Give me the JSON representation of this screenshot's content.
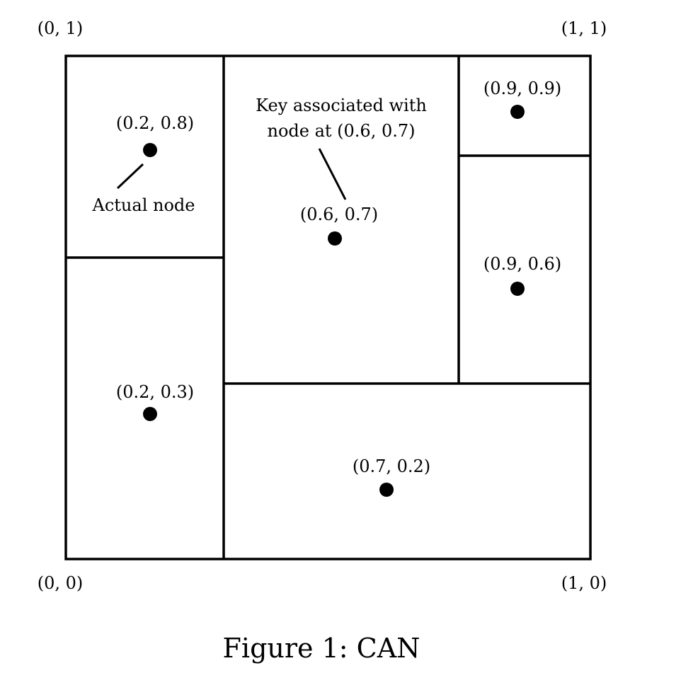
{
  "corners": {
    "top_left": "(0, 1)",
    "top_right": "(1, 1)",
    "bottom_left": "(0, 0)",
    "bottom_right": "(1, 0)"
  },
  "nodes": [
    {
      "id": "n-0-2-0-8",
      "label": "(0.2, 0.8)"
    },
    {
      "id": "n-0-6-0-7",
      "label": "(0.6, 0.7)"
    },
    {
      "id": "n-0-9-0-9",
      "label": "(0.9, 0.9)"
    },
    {
      "id": "n-0-9-0-6",
      "label": "(0.9, 0.6)"
    },
    {
      "id": "n-0-2-0-3",
      "label": "(0.2, 0.3)"
    },
    {
      "id": "n-0-7-0-2",
      "label": "(0.7, 0.2)"
    }
  ],
  "annotations": {
    "actual_node": "Actual node",
    "key_line1": "Key associated with",
    "key_line2": "node at (0.6, 0.7)"
  },
  "caption": "Figure 1: CAN"
}
